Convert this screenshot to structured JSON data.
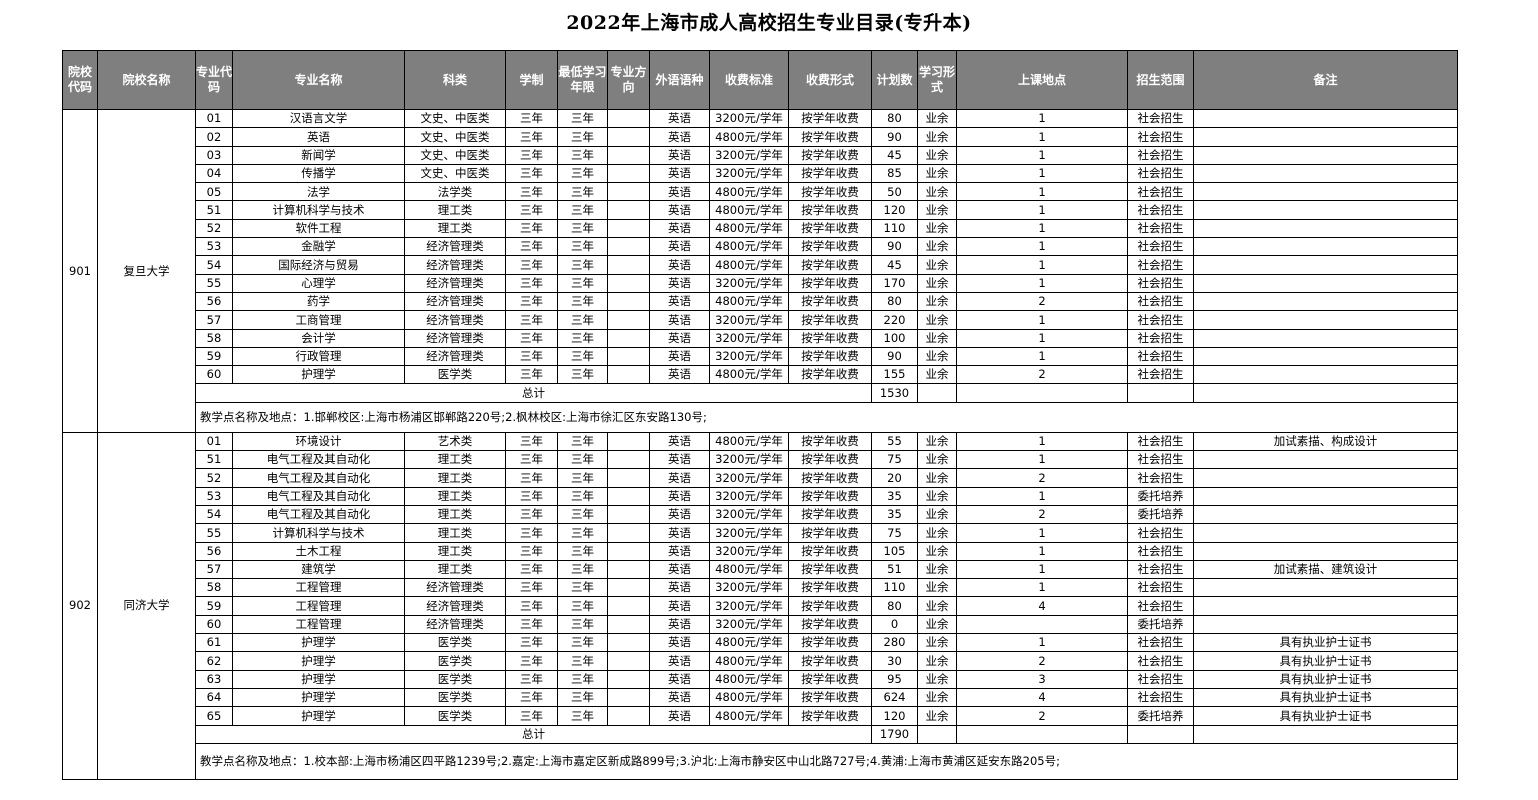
{
  "title": "2022年上海市成人高校招生专业目录(专升本)",
  "headers": [
    "院校代码",
    "院校名称",
    "专业代码",
    "专业名称",
    "科类",
    "学制",
    "最低学习年限",
    "专业方向",
    "外语语种",
    "收费标准",
    "收费形式",
    "计划数",
    "学习形式",
    "上课地点",
    "招生范围",
    "备注"
  ],
  "schools": [
    {
      "code": "901",
      "name": "复旦大学",
      "rows": [
        {
          "c": "01",
          "m": "汉语言文学",
          "k": "文史、中医类",
          "x": "三年",
          "z": "三年",
          "d": "",
          "y": "英语",
          "f": "3200元/学年",
          "fs": "按学年收费",
          "n": "80",
          "w": "业余",
          "p": "1",
          "s": "社会招生",
          "b": ""
        },
        {
          "c": "02",
          "m": "英语",
          "k": "文史、中医类",
          "x": "三年",
          "z": "三年",
          "d": "",
          "y": "英语",
          "f": "4800元/学年",
          "fs": "按学年收费",
          "n": "90",
          "w": "业余",
          "p": "1",
          "s": "社会招生",
          "b": ""
        },
        {
          "c": "03",
          "m": "新闻学",
          "k": "文史、中医类",
          "x": "三年",
          "z": "三年",
          "d": "",
          "y": "英语",
          "f": "3200元/学年",
          "fs": "按学年收费",
          "n": "45",
          "w": "业余",
          "p": "1",
          "s": "社会招生",
          "b": ""
        },
        {
          "c": "04",
          "m": "传播学",
          "k": "文史、中医类",
          "x": "三年",
          "z": "三年",
          "d": "",
          "y": "英语",
          "f": "3200元/学年",
          "fs": "按学年收费",
          "n": "85",
          "w": "业余",
          "p": "1",
          "s": "社会招生",
          "b": ""
        },
        {
          "c": "05",
          "m": "法学",
          "k": "法学类",
          "x": "三年",
          "z": "三年",
          "d": "",
          "y": "英语",
          "f": "4800元/学年",
          "fs": "按学年收费",
          "n": "50",
          "w": "业余",
          "p": "1",
          "s": "社会招生",
          "b": ""
        },
        {
          "c": "51",
          "m": "计算机科学与技术",
          "k": "理工类",
          "x": "三年",
          "z": "三年",
          "d": "",
          "y": "英语",
          "f": "4800元/学年",
          "fs": "按学年收费",
          "n": "120",
          "w": "业余",
          "p": "1",
          "s": "社会招生",
          "b": ""
        },
        {
          "c": "52",
          "m": "软件工程",
          "k": "理工类",
          "x": "三年",
          "z": "三年",
          "d": "",
          "y": "英语",
          "f": "4800元/学年",
          "fs": "按学年收费",
          "n": "110",
          "w": "业余",
          "p": "1",
          "s": "社会招生",
          "b": ""
        },
        {
          "c": "53",
          "m": "金融学",
          "k": "经济管理类",
          "x": "三年",
          "z": "三年",
          "d": "",
          "y": "英语",
          "f": "4800元/学年",
          "fs": "按学年收费",
          "n": "90",
          "w": "业余",
          "p": "1",
          "s": "社会招生",
          "b": ""
        },
        {
          "c": "54",
          "m": "国际经济与贸易",
          "k": "经济管理类",
          "x": "三年",
          "z": "三年",
          "d": "",
          "y": "英语",
          "f": "4800元/学年",
          "fs": "按学年收费",
          "n": "45",
          "w": "业余",
          "p": "1",
          "s": "社会招生",
          "b": ""
        },
        {
          "c": "55",
          "m": "心理学",
          "k": "经济管理类",
          "x": "三年",
          "z": "三年",
          "d": "",
          "y": "英语",
          "f": "3200元/学年",
          "fs": "按学年收费",
          "n": "170",
          "w": "业余",
          "p": "1",
          "s": "社会招生",
          "b": ""
        },
        {
          "c": "56",
          "m": "药学",
          "k": "经济管理类",
          "x": "三年",
          "z": "三年",
          "d": "",
          "y": "英语",
          "f": "4800元/学年",
          "fs": "按学年收费",
          "n": "80",
          "w": "业余",
          "p": "2",
          "s": "社会招生",
          "b": ""
        },
        {
          "c": "57",
          "m": "工商管理",
          "k": "经济管理类",
          "x": "三年",
          "z": "三年",
          "d": "",
          "y": "英语",
          "f": "3200元/学年",
          "fs": "按学年收费",
          "n": "220",
          "w": "业余",
          "p": "1",
          "s": "社会招生",
          "b": ""
        },
        {
          "c": "58",
          "m": "会计学",
          "k": "经济管理类",
          "x": "三年",
          "z": "三年",
          "d": "",
          "y": "英语",
          "f": "3200元/学年",
          "fs": "按学年收费",
          "n": "100",
          "w": "业余",
          "p": "1",
          "s": "社会招生",
          "b": ""
        },
        {
          "c": "59",
          "m": "行政管理",
          "k": "经济管理类",
          "x": "三年",
          "z": "三年",
          "d": "",
          "y": "英语",
          "f": "3200元/学年",
          "fs": "按学年收费",
          "n": "90",
          "w": "业余",
          "p": "1",
          "s": "社会招生",
          "b": ""
        },
        {
          "c": "60",
          "m": "护理学",
          "k": "医学类",
          "x": "三年",
          "z": "三年",
          "d": "",
          "y": "英语",
          "f": "4800元/学年",
          "fs": "按学年收费",
          "n": "155",
          "w": "业余",
          "p": "2",
          "s": "社会招生",
          "b": ""
        }
      ],
      "total_label": "总计",
      "total": "1530",
      "note": "教学点名称及地点：1.邯郸校区:上海市杨浦区邯郸路220号;2.枫林校区:上海市徐汇区东安路130号;"
    },
    {
      "code": "902",
      "name": "同济大学",
      "rows": [
        {
          "c": "01",
          "m": "环境设计",
          "k": "艺术类",
          "x": "三年",
          "z": "三年",
          "d": "",
          "y": "英语",
          "f": "4800元/学年",
          "fs": "按学年收费",
          "n": "55",
          "w": "业余",
          "p": "1",
          "s": "社会招生",
          "b": "加试素描、构成设计"
        },
        {
          "c": "51",
          "m": "电气工程及其自动化",
          "k": "理工类",
          "x": "三年",
          "z": "三年",
          "d": "",
          "y": "英语",
          "f": "3200元/学年",
          "fs": "按学年收费",
          "n": "75",
          "w": "业余",
          "p": "1",
          "s": "社会招生",
          "b": ""
        },
        {
          "c": "52",
          "m": "电气工程及其自动化",
          "k": "理工类",
          "x": "三年",
          "z": "三年",
          "d": "",
          "y": "英语",
          "f": "3200元/学年",
          "fs": "按学年收费",
          "n": "20",
          "w": "业余",
          "p": "2",
          "s": "社会招生",
          "b": ""
        },
        {
          "c": "53",
          "m": "电气工程及其自动化",
          "k": "理工类",
          "x": "三年",
          "z": "三年",
          "d": "",
          "y": "英语",
          "f": "3200元/学年",
          "fs": "按学年收费",
          "n": "35",
          "w": "业余",
          "p": "1",
          "s": "委托培养",
          "b": ""
        },
        {
          "c": "54",
          "m": "电气工程及其自动化",
          "k": "理工类",
          "x": "三年",
          "z": "三年",
          "d": "",
          "y": "英语",
          "f": "3200元/学年",
          "fs": "按学年收费",
          "n": "35",
          "w": "业余",
          "p": "2",
          "s": "委托培养",
          "b": ""
        },
        {
          "c": "55",
          "m": "计算机科学与技术",
          "k": "理工类",
          "x": "三年",
          "z": "三年",
          "d": "",
          "y": "英语",
          "f": "3200元/学年",
          "fs": "按学年收费",
          "n": "75",
          "w": "业余",
          "p": "1",
          "s": "社会招生",
          "b": ""
        },
        {
          "c": "56",
          "m": "土木工程",
          "k": "理工类",
          "x": "三年",
          "z": "三年",
          "d": "",
          "y": "英语",
          "f": "3200元/学年",
          "fs": "按学年收费",
          "n": "105",
          "w": "业余",
          "p": "1",
          "s": "社会招生",
          "b": ""
        },
        {
          "c": "57",
          "m": "建筑学",
          "k": "理工类",
          "x": "三年",
          "z": "三年",
          "d": "",
          "y": "英语",
          "f": "4800元/学年",
          "fs": "按学年收费",
          "n": "51",
          "w": "业余",
          "p": "1",
          "s": "社会招生",
          "b": "加试素描、建筑设计"
        },
        {
          "c": "58",
          "m": "工程管理",
          "k": "经济管理类",
          "x": "三年",
          "z": "三年",
          "d": "",
          "y": "英语",
          "f": "3200元/学年",
          "fs": "按学年收费",
          "n": "110",
          "w": "业余",
          "p": "1",
          "s": "社会招生",
          "b": ""
        },
        {
          "c": "59",
          "m": "工程管理",
          "k": "经济管理类",
          "x": "三年",
          "z": "三年",
          "d": "",
          "y": "英语",
          "f": "3200元/学年",
          "fs": "按学年收费",
          "n": "80",
          "w": "业余",
          "p": "4",
          "s": "社会招生",
          "b": ""
        },
        {
          "c": "60",
          "m": "工程管理",
          "k": "经济管理类",
          "x": "三年",
          "z": "三年",
          "d": "",
          "y": "英语",
          "f": "3200元/学年",
          "fs": "按学年收费",
          "n": "0",
          "w": "业余",
          "p": "",
          "s": "委托培养",
          "b": ""
        },
        {
          "c": "61",
          "m": "护理学",
          "k": "医学类",
          "x": "三年",
          "z": "三年",
          "d": "",
          "y": "英语",
          "f": "4800元/学年",
          "fs": "按学年收费",
          "n": "280",
          "w": "业余",
          "p": "1",
          "s": "社会招生",
          "b": "具有执业护士证书"
        },
        {
          "c": "62",
          "m": "护理学",
          "k": "医学类",
          "x": "三年",
          "z": "三年",
          "d": "",
          "y": "英语",
          "f": "4800元/学年",
          "fs": "按学年收费",
          "n": "30",
          "w": "业余",
          "p": "2",
          "s": "社会招生",
          "b": "具有执业护士证书"
        },
        {
          "c": "63",
          "m": "护理学",
          "k": "医学类",
          "x": "三年",
          "z": "三年",
          "d": "",
          "y": "英语",
          "f": "4800元/学年",
          "fs": "按学年收费",
          "n": "95",
          "w": "业余",
          "p": "3",
          "s": "社会招生",
          "b": "具有执业护士证书"
        },
        {
          "c": "64",
          "m": "护理学",
          "k": "医学类",
          "x": "三年",
          "z": "三年",
          "d": "",
          "y": "英语",
          "f": "4800元/学年",
          "fs": "按学年收费",
          "n": "624",
          "w": "业余",
          "p": "4",
          "s": "社会招生",
          "b": "具有执业护士证书"
        },
        {
          "c": "65",
          "m": "护理学",
          "k": "医学类",
          "x": "三年",
          "z": "三年",
          "d": "",
          "y": "英语",
          "f": "4800元/学年",
          "fs": "按学年收费",
          "n": "120",
          "w": "业余",
          "p": "2",
          "s": "委托培养",
          "b": "具有执业护士证书"
        }
      ],
      "total_label": "总计",
      "total": "1790",
      "note": "教学点名称及地点：1.校本部:上海市杨浦区四平路1239号;2.嘉定:上海市嘉定区新成路899号;3.沪北:上海市静安区中山北路727号;4.黄浦:上海市黄浦区延安东路205号;"
    }
  ]
}
